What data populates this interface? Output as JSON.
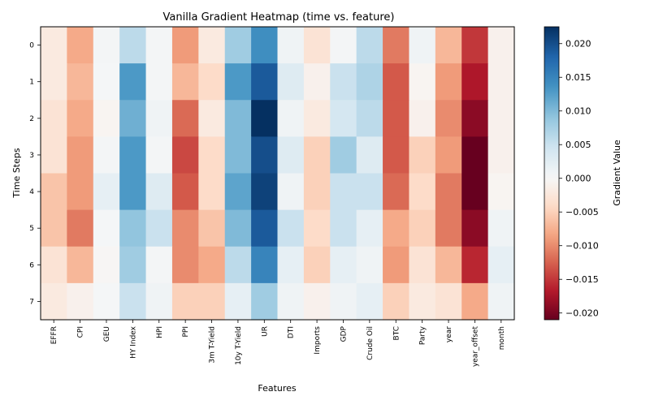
{
  "chart_data": {
    "type": "heatmap",
    "title": "Vanilla Gradient Heatmap (time vs. feature)",
    "xlabel": "Features",
    "ylabel": "Time Steps",
    "colorbar_label": "Gradient Value",
    "colormap": "RdBu",
    "vmin": -0.021,
    "vmax": 0.0225,
    "colorbar_ticks": [
      0.02,
      0.015,
      0.01,
      0.005,
      0.0,
      -0.005,
      -0.01,
      -0.015,
      -0.02
    ],
    "colorbar_tick_labels": [
      "0.020",
      "0.015",
      "0.010",
      "0.005",
      "0.000",
      "−0.005",
      "−0.010",
      "−0.015",
      "−0.020"
    ],
    "x": [
      "EFFR",
      "CPI",
      "GEU",
      "HY Index",
      "HPI",
      "PPI",
      "3m T-Yield",
      "10y T-Yield",
      "UR",
      "DTI",
      "Imports",
      "GDP",
      "Crude Oil",
      "BTC",
      "Party",
      "year",
      "year_offset",
      "month"
    ],
    "y": [
      "0",
      "1",
      "2",
      "3",
      "4",
      "5",
      "6",
      "7"
    ],
    "values": [
      [
        -0.002,
        -0.008,
        0.0005,
        0.006,
        0.0005,
        -0.009,
        -0.002,
        0.008,
        0.014,
        0.001,
        -0.003,
        0.0005,
        0.006,
        -0.011,
        0.001,
        -0.007,
        -0.015,
        -0.001
      ],
      [
        -0.002,
        -0.007,
        0.0003,
        0.013,
        0.0005,
        -0.007,
        -0.004,
        0.013,
        0.019,
        0.003,
        -0.001,
        0.005,
        0.007,
        -0.013,
        -0.0005,
        -0.009,
        -0.017,
        -0.001
      ],
      [
        -0.003,
        -0.008,
        -0.0005,
        0.011,
        0.001,
        -0.012,
        -0.002,
        0.01,
        0.0225,
        0.001,
        -0.002,
        0.004,
        0.006,
        -0.013,
        -0.001,
        -0.01,
        -0.019,
        -0.001
      ],
      [
        -0.003,
        -0.009,
        0.0005,
        0.013,
        0.0005,
        -0.014,
        -0.004,
        0.01,
        0.02,
        0.003,
        -0.005,
        0.008,
        0.003,
        -0.013,
        -0.005,
        -0.009,
        -0.021,
        -0.001
      ],
      [
        -0.006,
        -0.009,
        0.002,
        0.013,
        0.003,
        -0.013,
        -0.004,
        0.012,
        0.021,
        0.001,
        -0.005,
        0.005,
        0.005,
        -0.012,
        -0.004,
        -0.011,
        -0.021,
        -0.0005
      ],
      [
        -0.006,
        -0.011,
        0.0003,
        0.009,
        0.005,
        -0.01,
        -0.006,
        0.01,
        0.019,
        0.005,
        -0.004,
        0.005,
        0.002,
        -0.008,
        -0.005,
        -0.011,
        -0.019,
        0.001
      ],
      [
        -0.003,
        -0.007,
        -0.0003,
        0.008,
        0.0005,
        -0.01,
        -0.008,
        0.006,
        0.015,
        0.002,
        -0.005,
        0.002,
        0.001,
        -0.009,
        -0.003,
        -0.007,
        -0.016,
        0.002
      ],
      [
        -0.002,
        -0.001,
        0.0003,
        0.005,
        0.001,
        -0.005,
        -0.005,
        0.002,
        0.008,
        0.001,
        -0.001,
        0.001,
        0.002,
        -0.005,
        -0.002,
        -0.003,
        -0.008,
        0.001
      ]
    ]
  }
}
